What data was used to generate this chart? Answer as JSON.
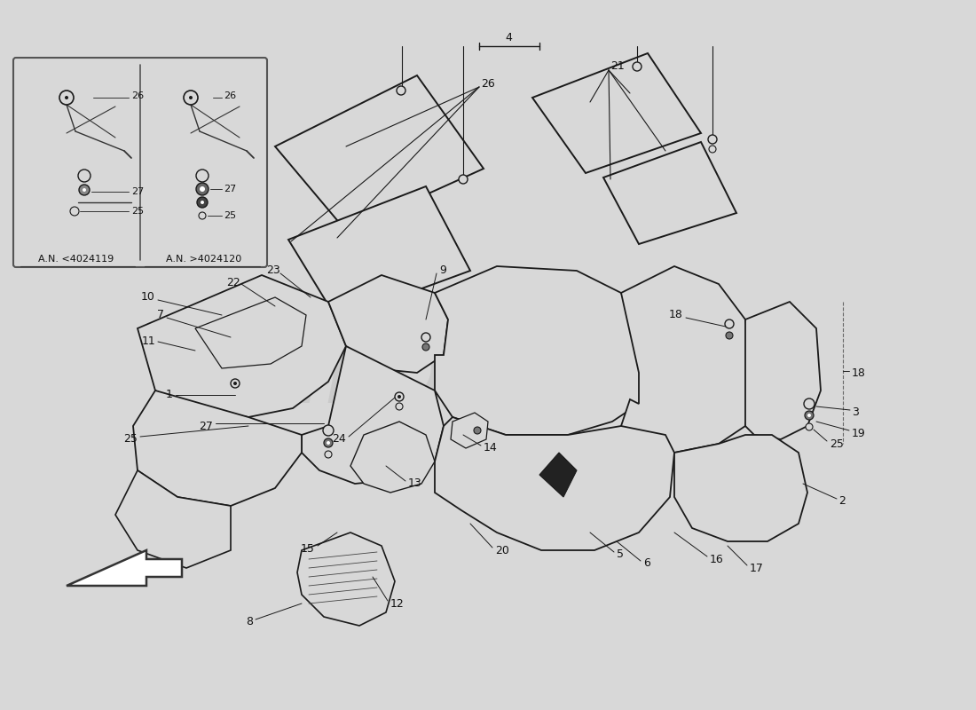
{
  "bg_color": "#d8d8d8",
  "line_color": "#1a1a1a",
  "watermark_color": "#b0b0b0",
  "watermark_alpha": 0.35,
  "inset_caption_left": "A.N. <4024119",
  "inset_caption_right": "A.N. >4024120",
  "label_fontsize": 9,
  "label_color": "#111111"
}
